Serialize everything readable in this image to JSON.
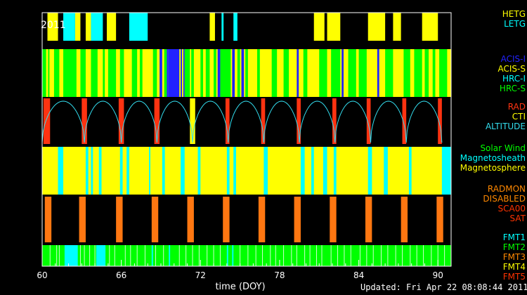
{
  "chart_data": {
    "type": "timeline",
    "year_label": "2011",
    "xlabel": "time (DOY)",
    "xlim": [
      60,
      91
    ],
    "xticks": [
      60,
      66,
      72,
      78,
      84,
      90
    ],
    "footer": "Updated: Fri Apr 22 08:08:44 2011",
    "panels": [
      {
        "name": "grating",
        "background": "#000000",
        "legend": [
          {
            "label": "HETG",
            "color": "#ffff00"
          },
          {
            "label": "LETG",
            "color": "#00ffff"
          }
        ],
        "segments": [
          {
            "x0": 60.4,
            "x1": 61.2,
            "color": "#ffff00"
          },
          {
            "x0": 61.6,
            "x1": 62.5,
            "color": "#00ffff"
          },
          {
            "x0": 62.5,
            "x1": 62.9,
            "color": "#ffff00"
          },
          {
            "x0": 63.3,
            "x1": 63.7,
            "color": "#ffff00"
          },
          {
            "x0": 63.7,
            "x1": 64.6,
            "color": "#00ffff"
          },
          {
            "x0": 64.9,
            "x1": 65.6,
            "color": "#ffff00"
          },
          {
            "x0": 66.6,
            "x1": 68.0,
            "color": "#00ffff"
          },
          {
            "x0": 72.7,
            "x1": 73.1,
            "color": "#ffff00"
          },
          {
            "x0": 73.6,
            "x1": 73.75,
            "color": "#00ffff"
          },
          {
            "x0": 74.5,
            "x1": 74.8,
            "color": "#00ffff"
          },
          {
            "x0": 80.6,
            "x1": 81.4,
            "color": "#ffff00"
          },
          {
            "x0": 81.6,
            "x1": 82.6,
            "color": "#ffff00"
          },
          {
            "x0": 84.7,
            "x1": 86.0,
            "color": "#ffff00"
          },
          {
            "x0": 86.6,
            "x1": 87.2,
            "color": "#ffff00"
          },
          {
            "x0": 88.8,
            "x1": 90.0,
            "color": "#ffff00"
          }
        ]
      },
      {
        "name": "instrument",
        "background": "#ffff00",
        "legend": [
          {
            "label": "ACIS-I",
            "color": "#2222ff"
          },
          {
            "label": "ACIS-S",
            "color": "#ffff00"
          },
          {
            "label": "HRC-I",
            "color": "#00ffff"
          },
          {
            "label": "HRC-S",
            "color": "#00ff00"
          }
        ],
        "segments": [
          {
            "x0": 60.0,
            "x1": 60.3,
            "color": "#00ff00"
          },
          {
            "x0": 60.45,
            "x1": 60.55,
            "color": "#00ff00"
          },
          {
            "x0": 60.9,
            "x1": 61.3,
            "color": "#00ff00"
          },
          {
            "x0": 61.6,
            "x1": 62.6,
            "color": "#00ff00"
          },
          {
            "x0": 62.9,
            "x1": 63.3,
            "color": "#00ff00"
          },
          {
            "x0": 63.7,
            "x1": 64.2,
            "color": "#00ff00"
          },
          {
            "x0": 64.6,
            "x1": 64.75,
            "color": "#00ff00"
          },
          {
            "x0": 65.0,
            "x1": 65.6,
            "color": "#00ff00"
          },
          {
            "x0": 65.9,
            "x1": 66.2,
            "color": "#00ff00"
          },
          {
            "x0": 66.8,
            "x1": 67.2,
            "color": "#00ff00"
          },
          {
            "x0": 67.4,
            "x1": 67.6,
            "color": "#00ff00"
          },
          {
            "x0": 68.4,
            "x1": 68.7,
            "color": "#00ff00"
          },
          {
            "x0": 68.9,
            "x1": 69.1,
            "color": "#2222ff"
          },
          {
            "x0": 69.25,
            "x1": 69.45,
            "color": "#00ff00"
          },
          {
            "x0": 69.45,
            "x1": 69.55,
            "color": "#2222ff"
          },
          {
            "x0": 69.55,
            "x1": 70.4,
            "color": "#2222ff"
          },
          {
            "x0": 70.5,
            "x1": 70.6,
            "color": "#2222ff"
          },
          {
            "x0": 70.7,
            "x1": 70.8,
            "color": "#2222ff"
          },
          {
            "x0": 70.8,
            "x1": 71.2,
            "color": "#00ff00"
          },
          {
            "x0": 71.3,
            "x1": 71.5,
            "color": "#00ff00"
          },
          {
            "x0": 72.0,
            "x1": 72.2,
            "color": "#00ff00"
          },
          {
            "x0": 72.4,
            "x1": 72.7,
            "color": "#00ff00"
          },
          {
            "x0": 73.0,
            "x1": 73.2,
            "color": "#00ff00"
          },
          {
            "x0": 73.3,
            "x1": 73.5,
            "color": "#2222ff"
          },
          {
            "x0": 73.5,
            "x1": 74.3,
            "color": "#00ff00"
          },
          {
            "x0": 74.4,
            "x1": 74.6,
            "color": "#2222ff"
          },
          {
            "x0": 74.8,
            "x1": 75.0,
            "color": "#00ff00"
          },
          {
            "x0": 75.1,
            "x1": 75.3,
            "color": "#2222ff"
          },
          {
            "x0": 75.4,
            "x1": 75.6,
            "color": "#00ff00"
          },
          {
            "x0": 76.3,
            "x1": 76.5,
            "color": "#00ff00"
          },
          {
            "x0": 77.4,
            "x1": 77.8,
            "color": "#00ff00"
          },
          {
            "x0": 78.3,
            "x1": 78.7,
            "color": "#00ff00"
          },
          {
            "x0": 79.3,
            "x1": 79.45,
            "color": "#2222ff"
          },
          {
            "x0": 79.8,
            "x1": 80.1,
            "color": "#00ff00"
          },
          {
            "x0": 81.0,
            "x1": 81.6,
            "color": "#00ff00"
          },
          {
            "x0": 81.9,
            "x1": 82.6,
            "color": "#00ff00"
          },
          {
            "x0": 82.7,
            "x1": 82.85,
            "color": "#2222ff"
          },
          {
            "x0": 83.2,
            "x1": 83.8,
            "color": "#00ff00"
          },
          {
            "x0": 84.0,
            "x1": 84.6,
            "color": "#00ff00"
          },
          {
            "x0": 85.4,
            "x1": 85.55,
            "color": "#2222ff"
          },
          {
            "x0": 86.0,
            "x1": 86.6,
            "color": "#00ff00"
          },
          {
            "x0": 87.4,
            "x1": 87.9,
            "color": "#00ff00"
          },
          {
            "x0": 88.2,
            "x1": 88.8,
            "color": "#00ff00"
          },
          {
            "x0": 89.0,
            "x1": 89.3,
            "color": "#00ff00"
          },
          {
            "x0": 89.6,
            "x1": 89.8,
            "color": "#00ff00"
          },
          {
            "x0": 90.1,
            "x1": 90.7,
            "color": "#00ff00"
          }
        ]
      },
      {
        "name": "radiation",
        "background": "#000000",
        "legend": [
          {
            "label": "RAD",
            "color": "#ff3311"
          },
          {
            "label": "CTI",
            "color": "#ffff00"
          },
          {
            "label": "ALTITUDE",
            "color": "#33ddee"
          }
        ],
        "segments": [
          {
            "x0": 60.1,
            "x1": 60.6,
            "color": "#ff3311"
          },
          {
            "x0": 63.0,
            "x1": 63.4,
            "color": "#ff3311"
          },
          {
            "x0": 65.8,
            "x1": 66.2,
            "color": "#ff3311"
          },
          {
            "x0": 68.5,
            "x1": 68.9,
            "color": "#ff3311"
          },
          {
            "x0": 71.2,
            "x1": 71.6,
            "color": "#ffff00"
          },
          {
            "x0": 73.9,
            "x1": 74.2,
            "color": "#ff3311"
          },
          {
            "x0": 76.6,
            "x1": 76.9,
            "color": "#ff3311"
          },
          {
            "x0": 79.3,
            "x1": 79.6,
            "color": "#ff3311"
          },
          {
            "x0": 82.0,
            "x1": 82.3,
            "color": "#ff3311"
          },
          {
            "x0": 84.6,
            "x1": 84.9,
            "color": "#ff3311"
          },
          {
            "x0": 87.3,
            "x1": 87.6,
            "color": "#ff3311"
          },
          {
            "x0": 90.0,
            "x1": 90.3,
            "color": "#ff3311"
          }
        ],
        "altitude_minima": [
          60.0,
          63.2,
          66.0,
          68.7,
          71.4,
          74.1,
          76.8,
          79.5,
          82.2,
          84.9,
          87.6,
          90.3
        ],
        "altitude_line_color": "#33ddee"
      },
      {
        "name": "environment",
        "background": "#ffff00",
        "legend": [
          {
            "label": "Solar Wind",
            "color": "#00ff00"
          },
          {
            "label": "Magnetosheath",
            "color": "#00ffff"
          },
          {
            "label": "Magnetosphere",
            "color": "#ffff00"
          }
        ],
        "segments": [
          {
            "x0": 61.2,
            "x1": 61.6,
            "color": "#00ffff"
          },
          {
            "x0": 63.3,
            "x1": 63.5,
            "color": "#00ffff"
          },
          {
            "x0": 63.7,
            "x1": 63.85,
            "color": "#00ffff"
          },
          {
            "x0": 64.3,
            "x1": 64.5,
            "color": "#00ffff"
          },
          {
            "x0": 65.9,
            "x1": 66.1,
            "color": "#00ffff"
          },
          {
            "x0": 66.4,
            "x1": 66.6,
            "color": "#00ffff"
          },
          {
            "x0": 68.1,
            "x1": 68.2,
            "color": "#00ffff"
          },
          {
            "x0": 69.1,
            "x1": 69.3,
            "color": "#00ffff"
          },
          {
            "x0": 70.5,
            "x1": 70.8,
            "color": "#00ffff"
          },
          {
            "x0": 71.8,
            "x1": 72.0,
            "color": "#00ffff"
          },
          {
            "x0": 74.0,
            "x1": 74.2,
            "color": "#00ffff"
          },
          {
            "x0": 74.5,
            "x1": 74.7,
            "color": "#00ffff"
          },
          {
            "x0": 76.8,
            "x1": 77.1,
            "color": "#00ffff"
          },
          {
            "x0": 79.6,
            "x1": 79.9,
            "color": "#00ffff"
          },
          {
            "x0": 80.4,
            "x1": 80.6,
            "color": "#00ffff"
          },
          {
            "x0": 81.3,
            "x1": 81.6,
            "color": "#00ffff"
          },
          {
            "x0": 82.1,
            "x1": 82.3,
            "color": "#00ffff"
          },
          {
            "x0": 84.7,
            "x1": 85.0,
            "color": "#00ffff"
          },
          {
            "x0": 85.9,
            "x1": 86.2,
            "color": "#00ffff"
          },
          {
            "x0": 87.8,
            "x1": 88.0,
            "color": "#00ffff"
          },
          {
            "x0": 90.3,
            "x1": 91.0,
            "color": "#00ffff"
          }
        ]
      },
      {
        "name": "radmon",
        "background": "#000000",
        "legend": [
          {
            "label": "RADMON",
            "color": "#ff8800"
          },
          {
            "label": "DISABLED",
            "color": "#ff8800"
          },
          {
            "label": "SCA00",
            "color": "#ff3300"
          },
          {
            "label": "SAT",
            "color": "#ff3300"
          }
        ],
        "segments": [
          {
            "x0": 60.2,
            "x1": 60.7,
            "color": "#ff7711"
          },
          {
            "x0": 62.8,
            "x1": 63.3,
            "color": "#ff7711"
          },
          {
            "x0": 65.6,
            "x1": 66.1,
            "color": "#ff7711"
          },
          {
            "x0": 68.3,
            "x1": 68.8,
            "color": "#ff7711"
          },
          {
            "x0": 71.0,
            "x1": 71.5,
            "color": "#ff7711"
          },
          {
            "x0": 73.7,
            "x1": 74.2,
            "color": "#ff7711"
          },
          {
            "x0": 76.4,
            "x1": 76.9,
            "color": "#ff7711"
          },
          {
            "x0": 79.1,
            "x1": 79.6,
            "color": "#ff7711"
          },
          {
            "x0": 81.8,
            "x1": 82.3,
            "color": "#ff7711"
          },
          {
            "x0": 84.5,
            "x1": 85.0,
            "color": "#ff7711"
          },
          {
            "x0": 87.2,
            "x1": 87.7,
            "color": "#ff7711"
          },
          {
            "x0": 89.9,
            "x1": 90.4,
            "color": "#ff7711"
          }
        ]
      },
      {
        "name": "format",
        "background": "#00ff00",
        "legend": [
          {
            "label": "FMT1",
            "color": "#00ffff"
          },
          {
            "label": "FMT2",
            "color": "#00ff00"
          },
          {
            "label": "FMT3",
            "color": "#ff8800"
          },
          {
            "label": "FMT4",
            "color": "#ffff00"
          },
          {
            "label": "FMT5",
            "color": "#ff3300"
          }
        ],
        "segments": [
          {
            "x0": 61.7,
            "x1": 62.7,
            "color": "#00ffff"
          },
          {
            "x0": 64.1,
            "x1": 64.8,
            "color": "#00ffff"
          },
          {
            "x0": 68.3,
            "x1": 68.4,
            "color": "#00ffff"
          },
          {
            "x0": 69.6,
            "x1": 69.7,
            "color": "#00ffff"
          },
          {
            "x0": 74.0,
            "x1": 74.1,
            "color": "#00ffff"
          },
          {
            "x0": 74.4,
            "x1": 74.5,
            "color": "#00ffff"
          }
        ],
        "lines": [
          60.6,
          61.1,
          61.3,
          62.9,
          63.2,
          63.6,
          64.0,
          65.1,
          65.5,
          66.3,
          66.7,
          67.2,
          67.8,
          68.6,
          69.2,
          70.4,
          70.9,
          71.4,
          71.9,
          72.5,
          73.0,
          73.5,
          75.0,
          75.6,
          76.2,
          76.7,
          77.3,
          77.7,
          78.3,
          78.9,
          79.3,
          79.9,
          80.3,
          80.8,
          81.2,
          81.9,
          82.4,
          82.9,
          83.4,
          84.1,
          84.6,
          85.1,
          85.7,
          86.2,
          86.8,
          87.3,
          87.9,
          88.4,
          88.9,
          89.5,
          90.0,
          90.5
        ]
      }
    ]
  }
}
